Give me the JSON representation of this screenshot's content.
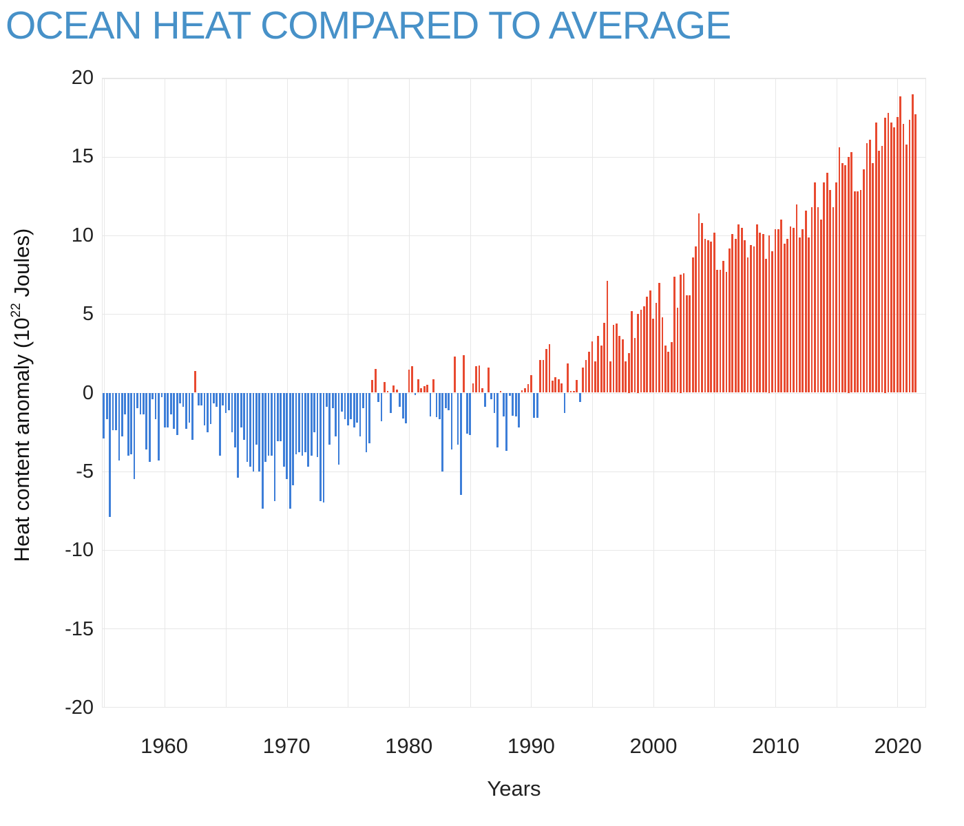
{
  "title": "OCEAN HEAT COMPARED TO AVERAGE",
  "accent_color": "#4791c8",
  "chart_data": {
    "type": "bar",
    "title": "OCEAN HEAT COMPARED TO AVERAGE",
    "xlabel": "Years",
    "ylabel": "Heat content anomaly (10^22 Joules)",
    "ylabel_prefix": "Heat content anomaly (10",
    "ylabel_exponent": "22",
    "ylabel_suffix": " Joules)",
    "legend": "none",
    "grid": "on",
    "positive_color": "#e84a30",
    "negative_color": "#3d7ed8",
    "grid_color": "#e7e7e7",
    "xlim": [
      1954.9,
      2022.3
    ],
    "ylim": [
      -20,
      20
    ],
    "y_ticks": [
      20,
      15,
      10,
      5,
      0,
      -5,
      -10,
      -15,
      -20
    ],
    "x_ticks": [
      1960,
      1970,
      1980,
      1990,
      2000,
      2010,
      2020
    ],
    "x_gridlines": [
      1955,
      1960,
      1965,
      1970,
      1975,
      1980,
      1985,
      1990,
      1995,
      2000,
      2005,
      2010,
      2015,
      2020
    ],
    "x_start": 1955.0,
    "x_step": 0.25,
    "values": [
      -2.9,
      -1.7,
      -7.9,
      -2.4,
      -2.4,
      -4.3,
      -2.8,
      -1.4,
      -4.0,
      -3.9,
      -5.5,
      -1.0,
      -1.4,
      -1.4,
      -3.6,
      -4.4,
      -0.4,
      -1.7,
      -4.3,
      -0.3,
      -2.2,
      -2.2,
      -1.4,
      -2.3,
      -2.7,
      -0.7,
      -0.9,
      -2.3,
      -1.9,
      -3.0,
      1.4,
      -0.8,
      -0.8,
      -2.1,
      -2.5,
      -2.0,
      -0.7,
      -0.9,
      -4.0,
      -0.8,
      -1.3,
      -1.1,
      -2.5,
      -3.5,
      -5.4,
      -2.2,
      -3.0,
      -4.4,
      -4.7,
      -5.0,
      -3.3,
      -5.0,
      -7.4,
      -4.4,
      -4.0,
      -4.0,
      -6.9,
      -3.1,
      -3.1,
      -4.7,
      -5.5,
      -7.4,
      -5.9,
      -3.9,
      -3.8,
      -4.0,
      -3.8,
      -4.7,
      -4.0,
      -2.5,
      -4.1,
      -6.9,
      -7.0,
      -0.9,
      -3.3,
      -1.0,
      -2.8,
      -4.6,
      -1.2,
      -1.7,
      -2.1,
      -1.7,
      -2.2,
      -1.9,
      -2.8,
      -1.0,
      -3.8,
      -3.2,
      0.8,
      1.5,
      -0.6,
      -1.8,
      0.7,
      0.1,
      -1.3,
      0.45,
      0.2,
      -0.9,
      -1.65,
      -1.95,
      1.45,
      1.7,
      -0.15,
      0.85,
      0.3,
      0.4,
      0.5,
      -1.5,
      0.85,
      -1.55,
      -1.7,
      -5.0,
      -1.0,
      -1.1,
      -3.6,
      2.3,
      -3.3,
      -6.5,
      2.4,
      -2.6,
      -2.7,
      0.6,
      1.7,
      1.75,
      0.3,
      -0.9,
      1.6,
      -0.4,
      -1.3,
      -3.5,
      0.1,
      -1.5,
      -3.7,
      -0.2,
      -1.45,
      -1.5,
      -2.2,
      0.15,
      0.3,
      0.55,
      1.1,
      -1.6,
      -1.6,
      2.1,
      2.1,
      2.8,
      3.1,
      0.75,
      1.0,
      0.85,
      0.6,
      -1.3,
      1.85,
      0.1,
      0.1,
      0.8,
      -0.6,
      1.6,
      2.1,
      2.6,
      3.25,
      2.0,
      3.6,
      3.0,
      4.45,
      7.1,
      2.0,
      4.3,
      4.4,
      3.6,
      3.4,
      2.0,
      2.5,
      5.2,
      3.5,
      5.0,
      5.3,
      5.5,
      6.1,
      6.5,
      4.7,
      5.7,
      7.0,
      4.8,
      3.0,
      2.6,
      3.2,
      7.4,
      5.4,
      7.5,
      7.6,
      6.2,
      6.2,
      8.6,
      9.3,
      11.4,
      10.8,
      9.8,
      9.7,
      9.6,
      10.2,
      7.8,
      7.8,
      8.4,
      7.7,
      9.2,
      10.1,
      9.8,
      10.7,
      10.5,
      9.7,
      8.6,
      9.4,
      9.3,
      10.7,
      10.2,
      10.1,
      8.5,
      10.0,
      9.0,
      10.4,
      10.4,
      11.0,
      9.5,
      9.8,
      10.6,
      10.5,
      12.0,
      9.9,
      10.4,
      11.6,
      9.9,
      11.8,
      13.4,
      11.8,
      11.0,
      13.4,
      14.0,
      12.9,
      11.8,
      13.4,
      15.6,
      14.6,
      14.5,
      15.0,
      15.3,
      12.8,
      12.8,
      12.9,
      14.2,
      15.9,
      16.1,
      14.6,
      17.2,
      15.4,
      15.7,
      17.5,
      17.8,
      17.2,
      16.9,
      17.55,
      18.85,
      17.1,
      15.8,
      17.35,
      19.0,
      17.7
    ]
  }
}
